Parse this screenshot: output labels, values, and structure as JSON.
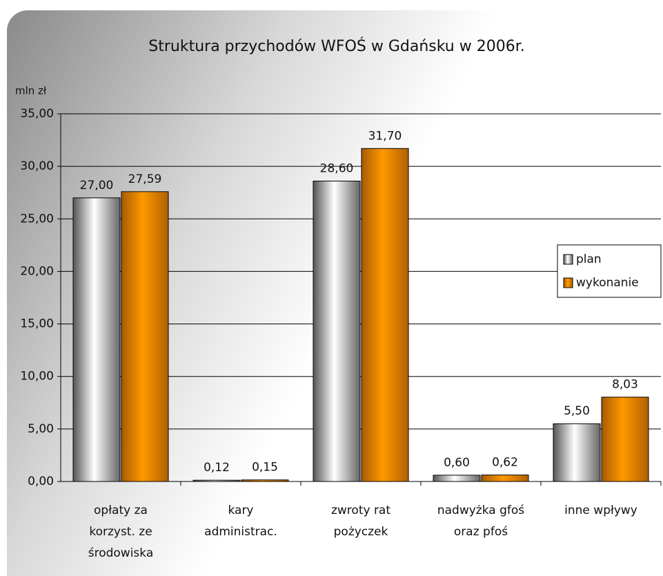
{
  "chart_data": {
    "type": "bar",
    "title": "Struktura przychodów WFOŚ w Gdańsku w 2006r.",
    "y_label": "mln zł",
    "categories": [
      [
        "opłaty za",
        "korzyst. ze",
        "środowiska"
      ],
      [
        "kary",
        "administrac."
      ],
      [
        "zwroty rat",
        "pożyczek"
      ],
      [
        "nadwyżka gfoś",
        "oraz pfoś"
      ],
      [
        "inne wpływy"
      ]
    ],
    "series": [
      {
        "name": "plan",
        "color": "#c8c8c8",
        "values": [
          27.0,
          0.12,
          28.6,
          0.6,
          5.5
        ],
        "value_labels": [
          "27,00",
          "0,12",
          "28,60",
          "0,60",
          "5,50"
        ]
      },
      {
        "name": "wykonanie",
        "color": "#ff9900",
        "values": [
          27.59,
          0.15,
          31.7,
          0.62,
          8.03
        ],
        "value_labels": [
          "27,59",
          "0,15",
          "31,70",
          "0,62",
          "8,03"
        ]
      }
    ],
    "ylim": [
      0,
      35
    ],
    "yticks": [
      {
        "value": 0,
        "label": "0,00"
      },
      {
        "value": 5,
        "label": "5,00"
      },
      {
        "value": 10,
        "label": "10,00"
      },
      {
        "value": 15,
        "label": "15,00"
      },
      {
        "value": 20,
        "label": "20,00"
      },
      {
        "value": 25,
        "label": "25,00"
      },
      {
        "value": 30,
        "label": "30,00"
      },
      {
        "value": 35,
        "label": "35,00"
      }
    ],
    "grid": true,
    "legend": "right"
  }
}
